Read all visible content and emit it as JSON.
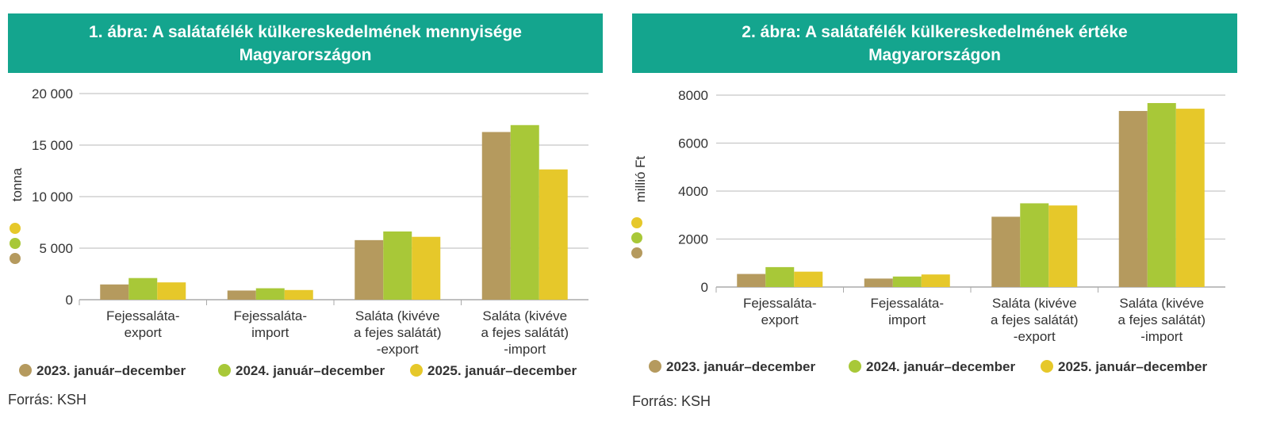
{
  "chart_data": [
    {
      "type": "bar",
      "title": "1. ábra: A salátafélék külkereskedelmének mennyisége Magyarországon",
      "title_lines": [
        "1. ábra: A salátafélék külkereskedelmének mennyisége",
        "Magyarországon"
      ],
      "ylabel": "tonna",
      "ylim": [
        0,
        20000
      ],
      "yticks": [
        0,
        5000,
        10000,
        15000,
        20000
      ],
      "ytick_labels": [
        "0",
        "5 000",
        "10 000",
        "15 000",
        "20 000"
      ],
      "grid": true,
      "legend": "bottom",
      "categories": [
        [
          "Fejessaláta-",
          "export"
        ],
        [
          "Fejessaláta-",
          "import"
        ],
        [
          "Saláta (kivéve",
          "a fejes salátát)",
          "-export"
        ],
        [
          "Saláta (kivéve",
          "a fejes salátát)",
          "-import"
        ]
      ],
      "series": [
        {
          "name": "2023. január–december",
          "color": "#b59a5e",
          "values": [
            1480,
            890,
            5780,
            16270
          ]
        },
        {
          "name": "2024. január–december",
          "color": "#a8c838",
          "values": [
            2100,
            1110,
            6620,
            16940
          ]
        },
        {
          "name": "2025. január–december",
          "color": "#e6c82a",
          "values": [
            1680,
            940,
            6100,
            12640
          ]
        }
      ],
      "source": "Forrás: KSH"
    },
    {
      "type": "bar",
      "title": "2. ábra: A salátafélék külkereskedelmének értéke Magyarországon",
      "title_lines": [
        "2. ábra: A salátafélék külkereskedelmének értéke",
        "Magyarországon"
      ],
      "ylabel": "millió Ft",
      "ylim": [
        0,
        8000
      ],
      "yticks": [
        0,
        2000,
        4000,
        6000,
        8000
      ],
      "ytick_labels": [
        "0",
        "2000",
        "4000",
        "6000",
        "8000"
      ],
      "grid": true,
      "legend": "bottom",
      "categories": [
        [
          "Fejessaláta-",
          "export"
        ],
        [
          "Fejessaláta-",
          "import"
        ],
        [
          "Saláta (kivéve",
          "a fejes salátát)",
          "-export"
        ],
        [
          "Saláta (kivéve",
          "a fejes salátát)",
          "-import"
        ]
      ],
      "series": [
        {
          "name": "2023. január–december",
          "color": "#b59a5e",
          "values": [
            544,
            352,
            2930,
            7340
          ]
        },
        {
          "name": "2024. január–december",
          "color": "#a8c838",
          "values": [
            830,
            437,
            3490,
            7670
          ]
        },
        {
          "name": "2025. január–december",
          "color": "#e6c82a",
          "values": [
            640,
            523,
            3400,
            7435
          ]
        }
      ],
      "source": "Forrás: KSH"
    }
  ]
}
